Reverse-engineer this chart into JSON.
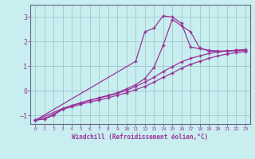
{
  "xlabel": "Windchill (Refroidissement éolien,°C)",
  "bg_color": "#c8eef0",
  "grid_color": "#a0c8cc",
  "line_color": "#993399",
  "spine_color": "#666688",
  "x_ticks": [
    0,
    1,
    2,
    3,
    4,
    5,
    6,
    7,
    8,
    9,
    10,
    11,
    12,
    13,
    14,
    15,
    16,
    17,
    18,
    19,
    20,
    21,
    22,
    23
  ],
  "xlim": [
    -0.5,
    23.5
  ],
  "ylim": [
    -1.35,
    3.5
  ],
  "y_ticks": [
    -1,
    0,
    1,
    2,
    3
  ],
  "curve_straight1_x": [
    0,
    1,
    2,
    3,
    4,
    5,
    6,
    7,
    8,
    9,
    10,
    11,
    12,
    13,
    14,
    15,
    16,
    17,
    18,
    19,
    20,
    21,
    22,
    23
  ],
  "curve_straight1_y": [
    -1.2,
    -1.15,
    -1.0,
    -0.75,
    -0.65,
    -0.55,
    -0.45,
    -0.38,
    -0.28,
    -0.18,
    -0.08,
    0.05,
    0.18,
    0.35,
    0.55,
    0.72,
    0.92,
    1.08,
    1.2,
    1.32,
    1.42,
    1.5,
    1.55,
    1.6
  ],
  "curve_straight2_x": [
    0,
    1,
    2,
    3,
    4,
    5,
    6,
    7,
    8,
    9,
    10,
    11,
    12,
    13,
    14,
    15,
    16,
    17,
    18,
    19,
    20,
    21,
    22,
    23
  ],
  "curve_straight2_y": [
    -1.2,
    -1.12,
    -0.95,
    -0.72,
    -0.6,
    -0.5,
    -0.38,
    -0.3,
    -0.2,
    -0.1,
    0.02,
    0.18,
    0.35,
    0.55,
    0.78,
    0.98,
    1.18,
    1.32,
    1.42,
    1.52,
    1.58,
    1.62,
    1.65,
    1.68
  ],
  "curve_peak1_x": [
    0,
    3,
    4,
    5,
    6,
    7,
    8,
    9,
    10,
    11,
    12,
    13,
    14,
    15,
    16,
    17,
    18,
    19,
    20,
    21,
    22,
    23
  ],
  "curve_peak1_y": [
    -1.2,
    -0.72,
    -0.6,
    -0.48,
    -0.38,
    -0.28,
    -0.18,
    -0.08,
    0.08,
    0.25,
    0.5,
    0.95,
    1.85,
    2.9,
    2.65,
    2.4,
    1.75,
    1.62,
    1.6,
    1.62,
    1.65,
    1.65
  ],
  "curve_peak2_x": [
    0,
    11,
    12,
    13,
    14,
    15,
    16,
    17,
    18,
    19,
    20,
    21,
    22,
    23
  ],
  "curve_peak2_y": [
    -1.2,
    1.2,
    2.4,
    2.55,
    3.05,
    3.0,
    2.75,
    1.78,
    1.72,
    1.65,
    1.62,
    1.62,
    1.63,
    1.64
  ]
}
